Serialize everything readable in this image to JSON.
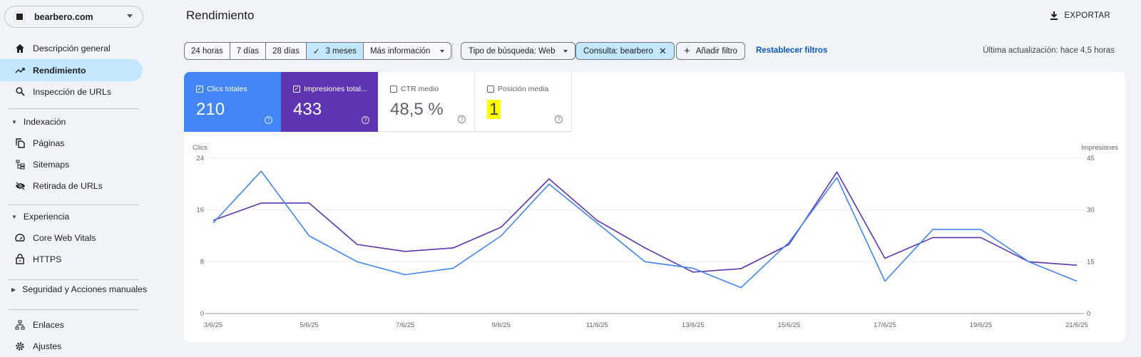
{
  "sidebar": {
    "property": "bearbero.com",
    "items": [
      {
        "label": "Descripción general",
        "icon": "home-icon"
      },
      {
        "label": "Rendimiento",
        "icon": "trending-up-icon",
        "active": true
      },
      {
        "label": "Inspección de URLs",
        "icon": "search-icon"
      }
    ],
    "sections": [
      {
        "label": "Indexación",
        "expanded": true,
        "items": [
          {
            "label": "Páginas",
            "icon": "pages-icon"
          },
          {
            "label": "Sitemaps",
            "icon": "sitemap-icon"
          },
          {
            "label": "Retirada de URLs",
            "icon": "eye-off-icon"
          }
        ]
      },
      {
        "label": "Experiencia",
        "expanded": true,
        "items": [
          {
            "label": "Core Web Vitals",
            "icon": "speedometer-icon"
          },
          {
            "label": "HTTPS",
            "icon": "lock-icon"
          }
        ]
      },
      {
        "label": "Seguridad y Acciones manuales",
        "expanded": false,
        "items": []
      }
    ],
    "bottom": [
      {
        "label": "Enlaces",
        "icon": "links-icon"
      },
      {
        "label": "Ajustes",
        "icon": "gear-icon"
      }
    ]
  },
  "header": {
    "title": "Rendimiento",
    "export_label": "EXPORTAR"
  },
  "filters": {
    "ranges": [
      "24 horas",
      "7 días",
      "28 días",
      "3 meses"
    ],
    "selected_range": "3 meses",
    "more": "Más información",
    "search_type": "Tipo de búsqueda: Web",
    "query_chip": "Consulta: bearbero",
    "add_filter": "Añadir filtro",
    "reset": "Restablecer filtros",
    "updated": "Última actualización: hace 4,5 horas"
  },
  "metrics": [
    {
      "label": "Clics totales",
      "value": "210",
      "checked": true,
      "color": "#4285f4"
    },
    {
      "label": "Impresiones total...",
      "value": "433",
      "checked": true,
      "color": "#5e35b1"
    },
    {
      "label": "CTR medio",
      "value": "48,5 %",
      "checked": false
    },
    {
      "label": "Posición media",
      "value": "1",
      "checked": false,
      "highlight": "#ffff00"
    }
  ],
  "chart_data": {
    "type": "line",
    "x": [
      "3/6/25",
      "4/6/25",
      "5/6/25",
      "6/6/25",
      "7/6/25",
      "8/6/25",
      "9/6/25",
      "10/6/25",
      "11/6/25",
      "12/6/25",
      "13/6/25",
      "14/6/25",
      "15/6/25",
      "16/6/25",
      "17/6/25",
      "18/6/25",
      "19/6/25",
      "20/6/25",
      "21/6/25"
    ],
    "x_tick_labels": [
      "3/6/25",
      "5/6/25",
      "7/6/25",
      "9/6/25",
      "11/6/25",
      "13/6/25",
      "15/6/25",
      "17/6/25",
      "19/6/25",
      "21/6/25"
    ],
    "series": [
      {
        "name": "Clics",
        "axis": "left",
        "color": "#4285f4",
        "values": [
          14,
          22,
          12,
          8,
          6,
          7,
          12,
          20,
          14,
          8,
          7,
          4,
          11,
          21,
          5,
          13,
          13,
          8,
          5
        ]
      },
      {
        "name": "Impresiones",
        "axis": "right",
        "color": "#5e35b1",
        "values": [
          27,
          32,
          32,
          20,
          18,
          19,
          25,
          39,
          27,
          19,
          12,
          13,
          20,
          41,
          16,
          22,
          22,
          15,
          14
        ]
      }
    ],
    "ylabel_left": "Clics",
    "ylim_left": [
      0,
      24
    ],
    "yticks_left": [
      "0",
      "8",
      "16",
      "24"
    ],
    "ylabel_right": "Impresiones",
    "ylim_right": [
      0,
      45
    ],
    "yticks_right": [
      "0",
      "15",
      "30",
      "45"
    ],
    "grid": true
  }
}
